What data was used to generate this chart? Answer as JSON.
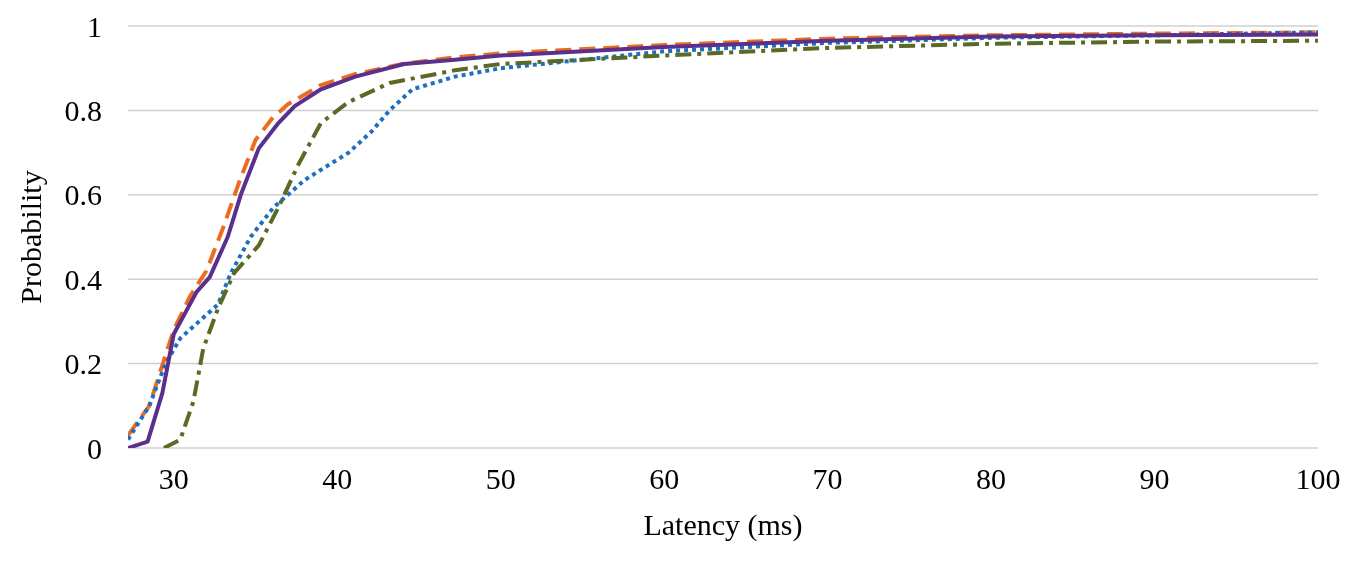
{
  "chart_data": {
    "type": "line",
    "xlabel": "Latency (ms)",
    "ylabel": "Probability",
    "xlim": [
      27.2,
      100
    ],
    "xticks": [
      30,
      40,
      50,
      60,
      70,
      80,
      90,
      100
    ],
    "ylim": [
      0,
      1
    ],
    "yticks": [
      0,
      0.2,
      0.4,
      0.6,
      0.8,
      1
    ],
    "grid": "y",
    "legend": false,
    "marker": "none",
    "series": [
      {
        "color": "#ed6d1f",
        "line_style": "dashed",
        "x": [
          27.2,
          28.5,
          29.5,
          30,
          31,
          32,
          33,
          34,
          35,
          36,
          37,
          39,
          41,
          44,
          47,
          50,
          60,
          70,
          80,
          90,
          100
        ],
        "values": [
          0.03,
          0.1,
          0.22,
          0.28,
          0.36,
          0.42,
          0.52,
          0.63,
          0.73,
          0.78,
          0.815,
          0.86,
          0.885,
          0.91,
          0.925,
          0.935,
          0.955,
          0.97,
          0.978,
          0.982,
          0.985
        ]
      },
      {
        "color": "#1f6fc0",
        "line_style": "dotted",
        "x": [
          27.2,
          28.5,
          29.5,
          30.4,
          32.7,
          33.5,
          34.7,
          36.1,
          38,
          40.7,
          42.1,
          43.2,
          44.6,
          47.2,
          50,
          60,
          70,
          80,
          90,
          100
        ],
        "values": [
          0.02,
          0.1,
          0.2,
          0.26,
          0.34,
          0.415,
          0.5,
          0.57,
          0.635,
          0.7,
          0.75,
          0.8,
          0.85,
          0.88,
          0.9,
          0.94,
          0.96,
          0.972,
          0.978,
          0.985
        ]
      },
      {
        "color": "#5a6a24",
        "line_style": "dashdot",
        "x": [
          29.4,
          30.4,
          31.2,
          31.8,
          32.7,
          33.7,
          35.2,
          36.4,
          37.6,
          39,
          40.7,
          43.2,
          47.2,
          50,
          60,
          70,
          80,
          90,
          100
        ],
        "values": [
          0,
          0.02,
          0.11,
          0.235,
          0.33,
          0.415,
          0.48,
          0.57,
          0.67,
          0.77,
          0.82,
          0.865,
          0.895,
          0.91,
          0.93,
          0.948,
          0.958,
          0.963,
          0.965
        ]
      },
      {
        "color": "#5b2f8c",
        "line_style": "solid",
        "x": [
          27.2,
          28.4,
          29.3,
          30,
          31.4,
          32.2,
          33.3,
          34.1,
          35.2,
          36.4,
          37.4,
          39,
          41.1,
          44.1,
          47.2,
          50,
          60,
          70,
          80,
          90,
          100
        ],
        "values": [
          0,
          0.015,
          0.13,
          0.27,
          0.37,
          0.405,
          0.5,
          0.6,
          0.71,
          0.77,
          0.81,
          0.85,
          0.88,
          0.91,
          0.92,
          0.93,
          0.95,
          0.965,
          0.975,
          0.978,
          0.98
        ]
      }
    ]
  }
}
